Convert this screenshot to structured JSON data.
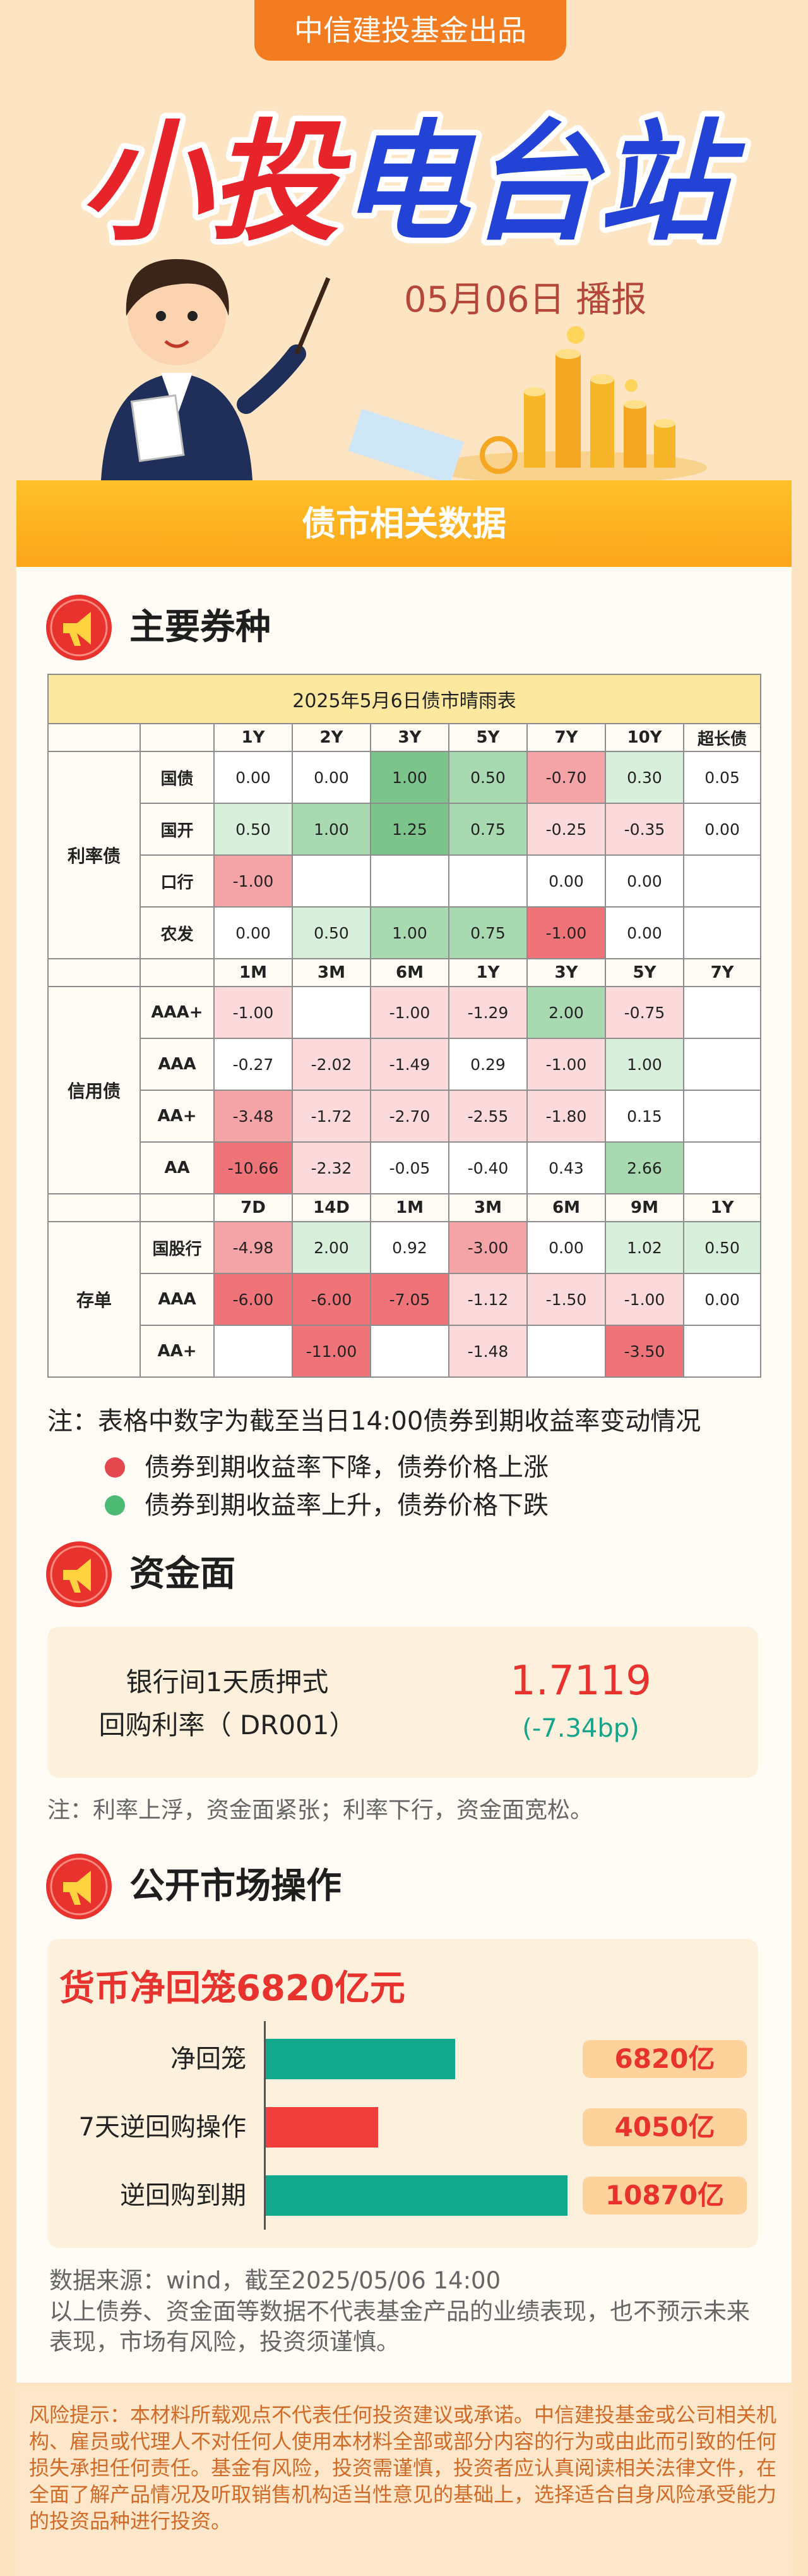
{
  "header": {
    "badge": "中信建投基金出品",
    "title": "小投电台站",
    "date": "05月06日 播报"
  },
  "banner": "债市相关数据",
  "sections": [
    "主要券种",
    "资金面",
    "公开市场操作"
  ],
  "table": {
    "title": "2025年5月6日债市晴雨表",
    "groups": [
      {
        "name": "利率债",
        "header": [
          "1Y",
          "2Y",
          "3Y",
          "5Y",
          "7Y",
          "10Y",
          "超长债"
        ],
        "rows": [
          {
            "label": "国债",
            "cells": [
              "0.00",
              "0.00",
              "1.00",
              "0.50",
              "-0.70",
              "0.30",
              "0.05"
            ],
            "colors": [
              "#ffffff",
              "#ffffff",
              "#7cc48c",
              "#a8d9b1",
              "#f4a3a7",
              "#d8efdc",
              "#ffffff"
            ]
          },
          {
            "label": "国开",
            "cells": [
              "0.50",
              "1.00",
              "1.25",
              "0.75",
              "-0.25",
              "-0.35",
              "0.00"
            ],
            "colors": [
              "#d8efdc",
              "#a8d9b1",
              "#7cc48c",
              "#a8d9b1",
              "#fcdadb",
              "#fcdadb",
              "#ffffff"
            ]
          },
          {
            "label": "口行",
            "cells": [
              "-1.00",
              null,
              null,
              null,
              "0.00",
              "0.00",
              null
            ],
            "colors": [
              "#f4a3a7",
              "#ffffff",
              "#ffffff",
              "#ffffff",
              "#ffffff",
              "#ffffff",
              "#ffffff"
            ]
          },
          {
            "label": "农发",
            "cells": [
              "0.00",
              "0.50",
              "1.00",
              "0.75",
              "-1.00",
              "0.00",
              null
            ],
            "colors": [
              "#ffffff",
              "#d8efdc",
              "#a8d9b1",
              "#a8d9b1",
              "#ef7479",
              "#ffffff",
              "#ffffff"
            ]
          }
        ]
      },
      {
        "name": "信用债",
        "header": [
          "1M",
          "3M",
          "6M",
          "1Y",
          "3Y",
          "5Y",
          "7Y"
        ],
        "rows": [
          {
            "label": "AAA+",
            "cells": [
              "-1.00",
              null,
              "-1.00",
              "-1.29",
              "2.00",
              "-0.75",
              null
            ],
            "colors": [
              "#fcdadb",
              "#ffffff",
              "#fcdadb",
              "#fcdadb",
              "#a8d9b1",
              "#fcdadb",
              "#ffffff"
            ]
          },
          {
            "label": "AAA",
            "cells": [
              "-0.27",
              "-2.02",
              "-1.49",
              "0.29",
              "-1.00",
              "1.00",
              null
            ],
            "colors": [
              "#ffffff",
              "#fcdadb",
              "#fcdadb",
              "#ffffff",
              "#fcdadb",
              "#d8efdc",
              "#ffffff"
            ]
          },
          {
            "label": "AA+",
            "cells": [
              "-3.48",
              "-1.72",
              "-2.70",
              "-2.55",
              "-1.80",
              "0.15",
              null
            ],
            "colors": [
              "#f4a3a7",
              "#fcdadb",
              "#fcdadb",
              "#fcdadb",
              "#fcdadb",
              "#ffffff",
              "#ffffff"
            ]
          },
          {
            "label": "AA",
            "cells": [
              "-10.66",
              "-2.32",
              "-0.05",
              "-0.40",
              "0.43",
              "2.66",
              null
            ],
            "colors": [
              "#ef7479",
              "#fcdadb",
              "#ffffff",
              "#ffffff",
              "#ffffff",
              "#a8d9b1",
              "#ffffff"
            ]
          }
        ]
      },
      {
        "name": "存单",
        "header": [
          "7D",
          "14D",
          "1M",
          "3M",
          "6M",
          "9M",
          "1Y"
        ],
        "rows": [
          {
            "label": "国股行",
            "cells": [
              "-4.98",
              "2.00",
              "0.92",
              "-3.00",
              "0.00",
              "1.02",
              "0.50"
            ],
            "colors": [
              "#f4a3a7",
              "#d8efdc",
              "#ffffff",
              "#f4a3a7",
              "#ffffff",
              "#d8efdc",
              "#d8efdc"
            ]
          },
          {
            "label": "AAA",
            "cells": [
              "-6.00",
              "-6.00",
              "-7.05",
              "-1.12",
              "-1.50",
              "-1.00",
              "0.00"
            ],
            "colors": [
              "#ef7479",
              "#ef7479",
              "#ef7479",
              "#fcdadb",
              "#fcdadb",
              "#fcdadb",
              "#ffffff"
            ]
          },
          {
            "label": "AA+",
            "cells": [
              null,
              "-11.00",
              null,
              "-1.48",
              null,
              "-3.50",
              null
            ],
            "colors": [
              "#ffffff",
              "#ef7479",
              "#ffffff",
              "#fcdadb",
              "#ffffff",
              "#ef7479",
              "#ffffff"
            ]
          }
        ]
      }
    ],
    "note": "注：表格中数字为截至当日14:00债券到期收益率变动情况",
    "legend": [
      {
        "text": "债券到期收益率下降，债券价格上涨",
        "color": "#e5474f"
      },
      {
        "text": "债券到期收益率上升，债券价格下跌",
        "color": "#4cba73"
      }
    ]
  },
  "money": {
    "label_lines": [
      "银行间1天质押式",
      "回购利率（ DR001）"
    ],
    "rate": "1.7119",
    "change": "(-7.34bp)",
    "note": "注：利率上浮，资金面紧张；利率下行，资金面宽松。"
  },
  "chart_data": {
    "type": "bar",
    "orientation": "horizontal",
    "title": "货币净回笼6820亿元",
    "categories": [
      "净回笼",
      "7天逆回购操作",
      "逆回购到期"
    ],
    "values": [
      6820,
      4050,
      10870
    ],
    "value_labels": [
      "6820亿",
      "4050亿",
      "10870亿"
    ],
    "colors": [
      "#12a88b",
      "#f23d3d",
      "#12a88b"
    ]
  },
  "footer": {
    "source": "数据来源：wind，截至2025/05/06 14:00",
    "disclaimer": "以上债券、资金面等数据不代表基金产品的业绩表现，也不预示未来表现，市场有风险，投资须谨慎。",
    "risk": "风险提示：本材料所载观点不代表任何投资建议或承诺。中信建投基金或公司相关机构、雇员或代理人不对任何人使用本材料全部或部分内容的行为或由此而引致的任何损失承担任何责任。基金有风险，投资需谨慎，投资者应认真阅读相关法律文件，在全面了解产品情况及听取销售机构适当性意见的基础上，选择适合自身风险承受能力的投资品种进行投资。"
  }
}
